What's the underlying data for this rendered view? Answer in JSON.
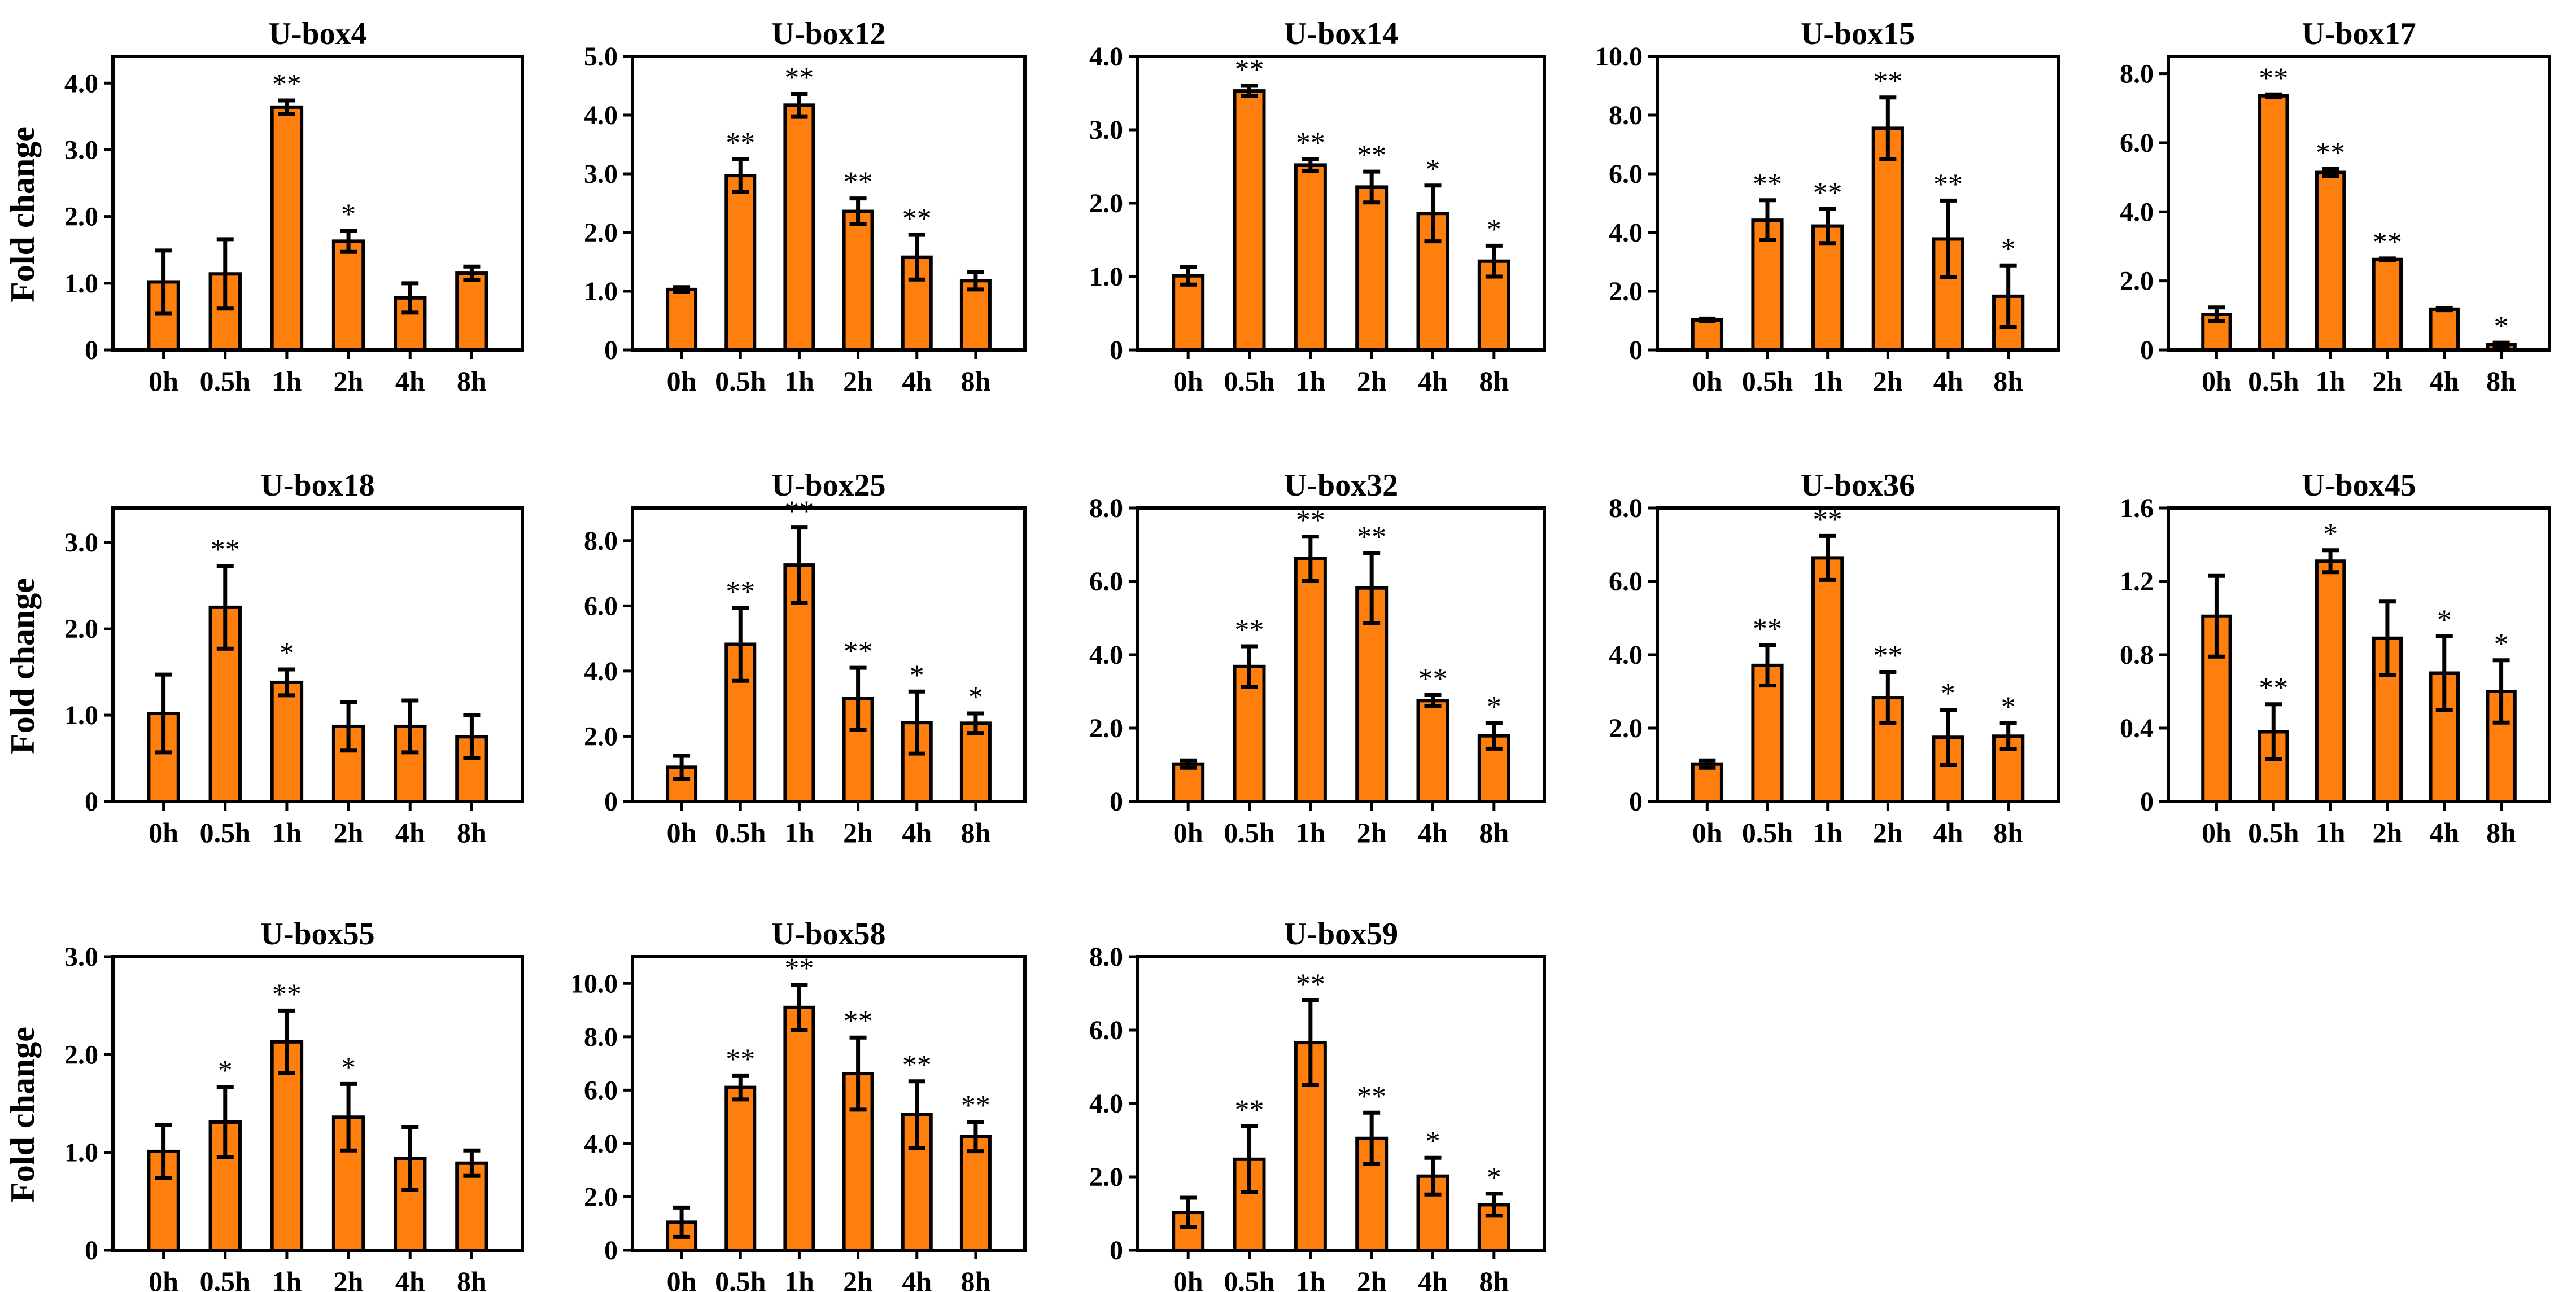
{
  "figure": {
    "ylabel": "Fold change",
    "bar_color": "#ff7f0e",
    "bar_stroke": "#000000"
  },
  "chart_data": [
    {
      "type": "bar",
      "title": "U-box4",
      "categories": [
        "0h",
        "0.5h",
        "1h",
        "2h",
        "4h",
        "8h"
      ],
      "values": [
        1.02,
        1.14,
        3.64,
        1.63,
        0.78,
        1.15
      ],
      "errors": [
        0.47,
        0.52,
        0.1,
        0.16,
        0.22,
        0.1
      ],
      "significance": [
        "",
        "",
        "**",
        "*",
        "",
        ""
      ],
      "yticks": [
        "0",
        "1.0",
        "2.0",
        "3.0",
        "4.0"
      ],
      "ylim": [
        0,
        4.4
      ]
    },
    {
      "type": "bar",
      "title": "U-box12",
      "categories": [
        "0h",
        "0.5h",
        "1h",
        "2h",
        "4h",
        "8h"
      ],
      "values": [
        1.03,
        2.97,
        4.17,
        2.36,
        1.58,
        1.18
      ],
      "errors": [
        0.04,
        0.28,
        0.19,
        0.22,
        0.38,
        0.15
      ],
      "significance": [
        "",
        "**",
        "**",
        "**",
        "**",
        ""
      ],
      "yticks": [
        "0",
        "1.0",
        "2.0",
        "3.0",
        "4.0",
        "5.0"
      ],
      "ylim": [
        0,
        5
      ]
    },
    {
      "type": "bar",
      "title": "U-box14",
      "categories": [
        "0h",
        "0.5h",
        "1h",
        "2h",
        "4h",
        "8h"
      ],
      "values": [
        1.01,
        3.53,
        2.52,
        2.22,
        1.86,
        1.21
      ],
      "errors": [
        0.12,
        0.07,
        0.08,
        0.21,
        0.38,
        0.21
      ],
      "significance": [
        "",
        "**",
        "**",
        "**",
        "*",
        "*"
      ],
      "yticks": [
        "0",
        "1.0",
        "2.0",
        "3.0",
        "4.0"
      ],
      "ylim": [
        0,
        4
      ]
    },
    {
      "type": "bar",
      "title": "U-box15",
      "categories": [
        "0h",
        "0.5h",
        "1h",
        "2h",
        "4h",
        "8h"
      ],
      "values": [
        1.02,
        4.42,
        4.22,
        7.55,
        3.78,
        1.83
      ],
      "errors": [
        0.05,
        0.68,
        0.58,
        1.05,
        1.31,
        1.05
      ],
      "significance": [
        "",
        "**",
        "**",
        "**",
        "**",
        "*"
      ],
      "yticks": [
        "0",
        "2.0",
        "4.0",
        "6.0",
        "8.0",
        "10.0"
      ],
      "ylim": [
        0,
        10
      ]
    },
    {
      "type": "bar",
      "title": "U-box17",
      "categories": [
        "0h",
        "0.5h",
        "1h",
        "2h",
        "4h",
        "8h"
      ],
      "values": [
        1.03,
        7.36,
        5.14,
        2.62,
        1.18,
        0.16
      ],
      "errors": [
        0.2,
        0.04,
        0.1,
        0.03,
        0.03,
        0.05
      ],
      "significance": [
        "",
        "**",
        "**",
        "**",
        "",
        "*"
      ],
      "yticks": [
        "0",
        "2.0",
        "4.0",
        "6.0",
        "8.0"
      ],
      "ylim": [
        0,
        8.5
      ]
    },
    {
      "type": "bar",
      "title": "U-box18",
      "categories": [
        "0h",
        "0.5h",
        "1h",
        "2h",
        "4h",
        "8h"
      ],
      "values": [
        1.02,
        2.25,
        1.38,
        0.87,
        0.87,
        0.75
      ],
      "errors": [
        0.45,
        0.48,
        0.15,
        0.28,
        0.3,
        0.25
      ],
      "significance": [
        "",
        "**",
        "*",
        "",
        "",
        ""
      ],
      "yticks": [
        "0",
        "1.0",
        "2.0",
        "3.0"
      ],
      "ylim": [
        0,
        3.4
      ]
    },
    {
      "type": "bar",
      "title": "U-box25",
      "categories": [
        "0h",
        "0.5h",
        "1h",
        "2h",
        "4h",
        "8h"
      ],
      "values": [
        1.05,
        4.82,
        7.25,
        3.15,
        2.42,
        2.4
      ],
      "errors": [
        0.35,
        1.12,
        1.15,
        0.95,
        0.95,
        0.3
      ],
      "significance": [
        "",
        "**",
        "**",
        "**",
        "*",
        "*"
      ],
      "yticks": [
        "0",
        "2.0",
        "4.0",
        "6.0",
        "8.0"
      ],
      "ylim": [
        0,
        9
      ]
    },
    {
      "type": "bar",
      "title": "U-box32",
      "categories": [
        "0h",
        "0.5h",
        "1h",
        "2h",
        "4h",
        "8h"
      ],
      "values": [
        1.02,
        3.68,
        6.62,
        5.82,
        2.75,
        1.79
      ],
      "errors": [
        0.1,
        0.55,
        0.6,
        0.95,
        0.15,
        0.35
      ],
      "significance": [
        "",
        "**",
        "**",
        "**",
        "**",
        "*"
      ],
      "yticks": [
        "0",
        "2.0",
        "4.0",
        "6.0",
        "8.0"
      ],
      "ylim": [
        0,
        8
      ]
    },
    {
      "type": "bar",
      "title": "U-box36",
      "categories": [
        "0h",
        "0.5h",
        "1h",
        "2h",
        "4h",
        "8h"
      ],
      "values": [
        1.02,
        3.71,
        6.64,
        2.83,
        1.75,
        1.78
      ],
      "errors": [
        0.1,
        0.55,
        0.6,
        0.7,
        0.75,
        0.35
      ],
      "significance": [
        "",
        "**",
        "**",
        "**",
        "*",
        "*"
      ],
      "yticks": [
        "0",
        "2.0",
        "4.0",
        "6.0",
        "8.0"
      ],
      "ylim": [
        0,
        8
      ]
    },
    {
      "type": "bar",
      "title": "U-box45",
      "categories": [
        "0h",
        "0.5h",
        "1h",
        "2h",
        "4h",
        "8h"
      ],
      "values": [
        1.01,
        0.38,
        1.31,
        0.89,
        0.7,
        0.6
      ],
      "errors": [
        0.22,
        0.15,
        0.06,
        0.2,
        0.2,
        0.17
      ],
      "significance": [
        "",
        "**",
        "*",
        "",
        "*",
        "*"
      ],
      "yticks": [
        "0",
        "0.4",
        "0.8",
        "1.2",
        "1.6"
      ],
      "ylim": [
        0,
        1.6
      ]
    },
    {
      "type": "bar",
      "title": "U-box55",
      "categories": [
        "0h",
        "0.5h",
        "1h",
        "2h",
        "4h",
        "8h"
      ],
      "values": [
        1.01,
        1.31,
        2.13,
        1.36,
        0.94,
        0.89
      ],
      "errors": [
        0.27,
        0.36,
        0.32,
        0.34,
        0.32,
        0.13
      ],
      "significance": [
        "",
        "*",
        "**",
        "*",
        "",
        ""
      ],
      "yticks": [
        "0",
        "1.0",
        "2.0",
        "3.0"
      ],
      "ylim": [
        0,
        3
      ]
    },
    {
      "type": "bar",
      "title": "U-box58",
      "categories": [
        "0h",
        "0.5h",
        "1h",
        "2h",
        "4h",
        "8h"
      ],
      "values": [
        1.05,
        6.1,
        9.1,
        6.62,
        5.08,
        4.26
      ],
      "errors": [
        0.55,
        0.45,
        0.85,
        1.35,
        1.25,
        0.55
      ],
      "significance": [
        "",
        "**",
        "**",
        "**",
        "**",
        "**"
      ],
      "yticks": [
        "0",
        "2.0",
        "4.0",
        "6.0",
        "8.0",
        "10.0"
      ],
      "ylim": [
        0,
        11
      ]
    },
    {
      "type": "bar",
      "title": "U-box59",
      "categories": [
        "0h",
        "0.5h",
        "1h",
        "2h",
        "4h",
        "8h"
      ],
      "values": [
        1.03,
        2.48,
        5.66,
        3.05,
        2.02,
        1.24
      ],
      "errors": [
        0.4,
        0.9,
        1.15,
        0.7,
        0.5,
        0.3
      ],
      "significance": [
        "",
        "**",
        "**",
        "**",
        "*",
        "*"
      ],
      "yticks": [
        "0",
        "2.0",
        "4.0",
        "6.0",
        "8.0"
      ],
      "ylim": [
        0,
        8
      ]
    }
  ]
}
